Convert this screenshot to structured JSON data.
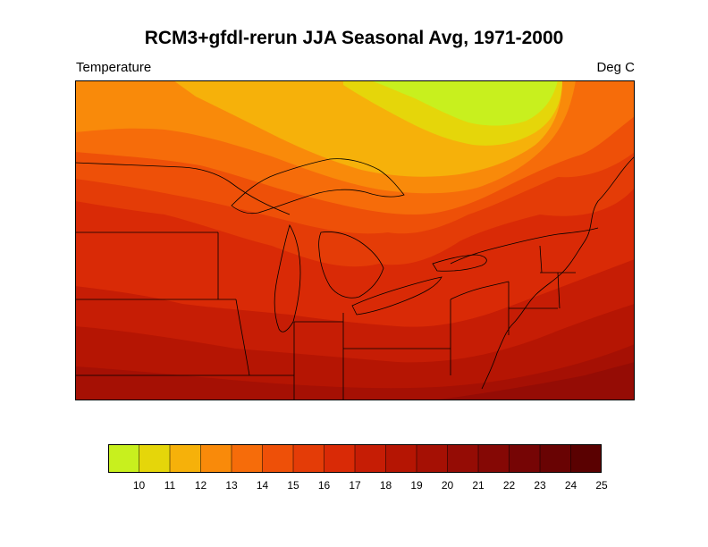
{
  "title": "RCM3+gfdl-rerun JJA Seasonal Avg, 1971-2000",
  "variable_label": "Temperature",
  "units_label": "Deg C",
  "colorbar": {
    "tick_labels": [
      "10",
      "11",
      "12",
      "13",
      "14",
      "15",
      "16",
      "17",
      "18",
      "19",
      "20",
      "21",
      "22",
      "23",
      "24",
      "25"
    ],
    "colors": [
      "#c8f01e",
      "#e5d60a",
      "#f6b10a",
      "#f98a0a",
      "#f66c0a",
      "#ee5008",
      "#e43c07",
      "#d92a06",
      "#c61d05",
      "#b51503",
      "#a51004",
      "#950c05",
      "#850805",
      "#760505",
      "#690303",
      "#5a0101"
    ]
  },
  "map": {
    "region": "Great Lakes and Northeastern United States",
    "field": "JJA seasonal average temperature"
  }
}
